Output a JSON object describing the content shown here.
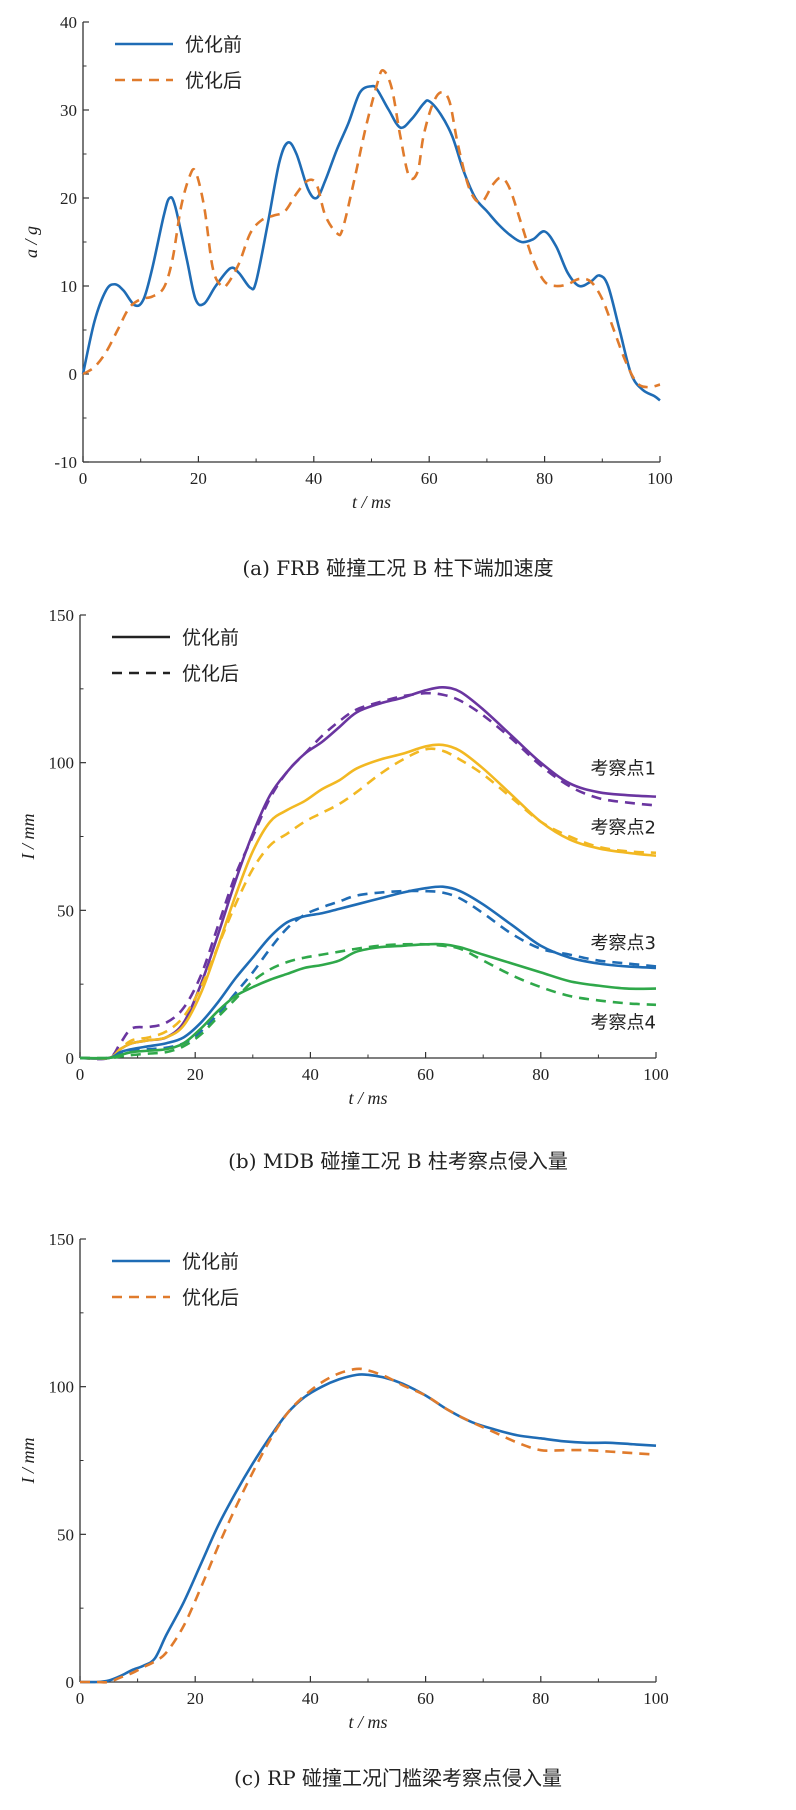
{
  "chart_data": [
    {
      "type": "line",
      "caption": "(a)  FRB 碰撞工况 B 柱下端加速度",
      "xlabel": "t / ms",
      "ylabel": "a / g",
      "xlim": [
        0,
        100
      ],
      "ylim": [
        -10,
        40
      ],
      "xticks": [
        0,
        20,
        40,
        60,
        80,
        100
      ],
      "yticks": [
        -10,
        0,
        10,
        20,
        30,
        40
      ],
      "legend": "top-left",
      "series": [
        {
          "name": "优化前",
          "color": "#1f6cb5",
          "dash": "solid",
          "x": [
            0,
            2,
            4,
            5.5,
            7,
            9,
            10.5,
            12,
            14,
            15,
            16,
            18,
            19.5,
            21,
            23,
            25.5,
            27,
            29,
            30,
            32,
            34,
            35.5,
            37,
            39,
            40.5,
            42,
            44,
            46,
            48,
            50,
            51,
            53,
            55,
            57,
            59,
            60,
            62,
            64,
            66,
            68,
            70,
            72,
            74,
            76,
            78,
            80,
            82,
            84,
            86,
            88,
            89.5,
            91,
            93,
            95,
            97,
            99,
            100
          ],
          "y": [
            0,
            6,
            9.5,
            10.2,
            9.5,
            7.8,
            8.5,
            12,
            18,
            20,
            19,
            13,
            8.5,
            8,
            10,
            12,
            11.5,
            9.8,
            10.5,
            17,
            24,
            26.3,
            25,
            21,
            20,
            22,
            25.5,
            28.5,
            32,
            32.7,
            32.3,
            30,
            28,
            29,
            30.7,
            31,
            29.5,
            27,
            23,
            20,
            18.5,
            17,
            15.8,
            15,
            15.3,
            16.2,
            14.5,
            11.5,
            10,
            10.5,
            11.2,
            10,
            5,
            0,
            -1.8,
            -2.5,
            -3
          ]
        },
        {
          "name": "优化后",
          "color": "#e07b2c",
          "dash": "10,7",
          "x": [
            0,
            2,
            4,
            6,
            8,
            10,
            12,
            14,
            15.5,
            17,
            18.5,
            19.5,
            21,
            22.5,
            24,
            25,
            27,
            29,
            31,
            33,
            35,
            37,
            39,
            40.5,
            42,
            44,
            45,
            47,
            49,
            51,
            52,
            53.5,
            55,
            56.5,
            58,
            59,
            60.5,
            62,
            63.5,
            65,
            67,
            69,
            71,
            72.5,
            74,
            76,
            78,
            80,
            82,
            84,
            86,
            88,
            90,
            92,
            94,
            96,
            98,
            100
          ],
          "y": [
            0,
            0.8,
            2.5,
            5,
            7.5,
            8.5,
            8.8,
            9.8,
            13,
            19,
            22.5,
            23,
            19,
            12,
            10,
            10.2,
            12.5,
            16,
            17.5,
            18,
            18.5,
            20.5,
            22,
            21.5,
            18,
            16,
            16.5,
            22,
            28,
            33,
            34.5,
            32.5,
            27,
            22.5,
            23,
            27,
            30.5,
            32,
            31,
            26,
            21,
            19.5,
            21.5,
            22.3,
            21,
            17,
            13,
            10.5,
            10,
            10.2,
            10.8,
            10.5,
            8.5,
            5,
            1.5,
            -1,
            -1.5,
            -1.2
          ]
        }
      ]
    },
    {
      "type": "line",
      "caption": "(b)  MDB 碰撞工况 B 柱考察点侵入量",
      "xlabel": "t / ms",
      "ylabel": "I / mm",
      "xlim": [
        0,
        100
      ],
      "ylim": [
        0,
        150
      ],
      "xticks": [
        0,
        20,
        40,
        60,
        80,
        100
      ],
      "yticks": [
        0,
        50,
        100,
        150
      ],
      "legend": "top-left",
      "legend_entries": [
        {
          "name": "优化前",
          "color": "#222222",
          "dash": "solid"
        },
        {
          "name": "优化后",
          "color": "#222222",
          "dash": "10,7"
        }
      ],
      "annotations": [
        {
          "text": "考察点1",
          "x": 88,
          "y": 98
        },
        {
          "text": "考察点2",
          "x": 88,
          "y": 78
        },
        {
          "text": "考察点3",
          "x": 88,
          "y": 39
        },
        {
          "text": "考察点4",
          "x": 88,
          "y": 12
        }
      ],
      "series": [
        {
          "name": "考察点1 优化前",
          "color": "#6a35a0",
          "dash": "solid",
          "x": [
            0,
            5,
            7,
            9,
            12,
            15,
            18,
            21,
            24,
            27,
            30,
            33,
            36,
            39,
            42,
            45,
            48,
            52,
            56,
            60,
            63,
            66,
            70,
            75,
            80,
            85,
            90,
            95,
            100
          ],
          "y": [
            0,
            0,
            3,
            5,
            6,
            7,
            12,
            25,
            42,
            60,
            76,
            89,
            97,
            103,
            107,
            112,
            117,
            120,
            122,
            124.5,
            125.5,
            124,
            118,
            109,
            100,
            93,
            90,
            89,
            88.5
          ]
        },
        {
          "name": "考察点1 优化后",
          "color": "#6a35a0",
          "dash": "10,7",
          "x": [
            0,
            5,
            7,
            9,
            12,
            15,
            18,
            21,
            24,
            27,
            30,
            33,
            36,
            39,
            42,
            45,
            48,
            52,
            56,
            60,
            63,
            66,
            70,
            75,
            80,
            85,
            90,
            95,
            100
          ],
          "y": [
            0,
            0,
            5,
            10,
            10.5,
            12,
            17,
            28,
            45,
            62,
            75,
            88,
            97,
            103,
            109,
            114,
            118,
            120.5,
            122.5,
            123.5,
            123,
            121,
            116,
            108,
            99,
            92,
            88,
            86.5,
            85.5
          ]
        },
        {
          "name": "考察点2 优化前",
          "color": "#f2b822",
          "dash": "solid",
          "x": [
            0,
            5,
            7,
            9,
            12,
            15,
            18,
            21,
            24,
            27,
            30,
            33,
            36,
            39,
            42,
            45,
            48,
            52,
            56,
            60,
            63,
            66,
            70,
            75,
            80,
            85,
            90,
            95,
            100
          ],
          "y": [
            0,
            0,
            3,
            5,
            6,
            7,
            11,
            22,
            38,
            55,
            70,
            80,
            84,
            87,
            91,
            94,
            98,
            101,
            103,
            105.5,
            106,
            104,
            98,
            89,
            80,
            74,
            71,
            69.5,
            68.5
          ]
        },
        {
          "name": "考察点2 优化后",
          "color": "#f2b822",
          "dash": "10,7",
          "x": [
            0,
            5,
            7,
            9,
            12,
            15,
            18,
            21,
            24,
            27,
            30,
            33,
            36,
            39,
            42,
            45,
            48,
            52,
            56,
            60,
            63,
            66,
            70,
            75,
            80,
            85,
            90,
            95,
            100
          ],
          "y": [
            0,
            0,
            3,
            6,
            7,
            9,
            14,
            24,
            38,
            52,
            64,
            72,
            76,
            80,
            83,
            86,
            90,
            96,
            101,
            104.5,
            104,
            101,
            96,
            88,
            80,
            75,
            71.5,
            70,
            69.5
          ]
        },
        {
          "name": "考察点3 优化前",
          "color": "#1f6cb5",
          "dash": "solid",
          "x": [
            0,
            5,
            7,
            9,
            12,
            15,
            18,
            21,
            24,
            27,
            30,
            33,
            36,
            39,
            42,
            45,
            48,
            52,
            56,
            60,
            63,
            66,
            70,
            75,
            80,
            85,
            90,
            95,
            100
          ],
          "y": [
            0,
            0,
            2,
            3,
            4,
            5,
            7,
            12,
            19,
            27,
            34,
            41,
            46,
            48,
            49,
            50.5,
            52,
            54,
            56,
            57.5,
            58,
            56.5,
            52,
            45,
            38,
            34,
            32,
            31,
            30.5
          ]
        },
        {
          "name": "考察点3 优化后",
          "color": "#1f6cb5",
          "dash": "10,7",
          "x": [
            0,
            5,
            7,
            9,
            12,
            15,
            18,
            21,
            24,
            27,
            30,
            33,
            36,
            39,
            42,
            45,
            48,
            52,
            56,
            60,
            63,
            66,
            70,
            75,
            80,
            85,
            90,
            95,
            100
          ],
          "y": [
            0,
            0,
            1.5,
            2.5,
            3,
            3.5,
            5,
            9,
            15,
            22,
            29,
            37,
            44,
            48.5,
            51,
            53,
            55,
            56,
            56.5,
            56.5,
            56,
            54,
            49,
            42,
            37,
            35,
            33,
            32,
            31
          ]
        },
        {
          "name": "考察点4 优化前",
          "color": "#2fa84a",
          "dash": "solid",
          "x": [
            0,
            5,
            7,
            9,
            12,
            15,
            18,
            21,
            24,
            27,
            30,
            33,
            36,
            39,
            42,
            45,
            48,
            52,
            56,
            60,
            63,
            66,
            70,
            75,
            80,
            85,
            90,
            95,
            100
          ],
          "y": [
            0,
            0,
            1,
            2,
            2.5,
            3,
            5,
            10,
            16,
            21,
            24,
            26.5,
            28.5,
            30.5,
            31.5,
            33,
            36,
            37.5,
            38,
            38.5,
            38.5,
            37.5,
            35,
            32,
            29,
            26,
            24.5,
            23.5,
            23.5
          ]
        },
        {
          "name": "考察点4 优化后",
          "color": "#2fa84a",
          "dash": "10,7",
          "x": [
            0,
            5,
            7,
            9,
            12,
            15,
            18,
            21,
            24,
            27,
            30,
            33,
            36,
            39,
            42,
            45,
            48,
            52,
            56,
            60,
            63,
            66,
            70,
            75,
            80,
            85,
            90,
            95,
            100
          ],
          "y": [
            0,
            0,
            0.5,
            1,
            1.5,
            2,
            4,
            8,
            14,
            20,
            26,
            30,
            32.5,
            34,
            35,
            36,
            37,
            38,
            38.5,
            38.5,
            38,
            37,
            33,
            28,
            24,
            21,
            19.5,
            18.5,
            18
          ]
        }
      ]
    },
    {
      "type": "line",
      "caption": "(c)  RP 碰撞工况门槛梁考察点侵入量",
      "xlabel": "t / ms",
      "ylabel": "I / mm",
      "xlim": [
        0,
        100
      ],
      "ylim": [
        0,
        150
      ],
      "xticks": [
        0,
        20,
        40,
        60,
        80,
        100
      ],
      "yticks": [
        0,
        50,
        100,
        150
      ],
      "legend": "top-left",
      "series": [
        {
          "name": "优化前",
          "color": "#1f6cb5",
          "dash": "solid",
          "x": [
            0,
            3,
            5,
            7,
            9,
            11,
            13,
            15,
            18,
            21,
            24,
            27,
            30,
            33,
            36,
            39,
            42,
            45,
            48,
            50,
            53,
            56,
            60,
            64,
            68,
            72,
            76,
            80,
            84,
            88,
            92,
            96,
            100
          ],
          "y": [
            0,
            0,
            0.5,
            2,
            4,
            5.5,
            8,
            16,
            27,
            40,
            53,
            64,
            74,
            83,
            91,
            96.5,
            100,
            102.5,
            104,
            104,
            103,
            101,
            97,
            92,
            88,
            85.5,
            83.5,
            82.5,
            81.5,
            81,
            81,
            80.5,
            80
          ]
        },
        {
          "name": "优化后",
          "color": "#e07b2c",
          "dash": "10,7",
          "x": [
            0,
            3,
            5,
            7,
            9,
            11,
            13,
            15,
            18,
            21,
            24,
            27,
            30,
            33,
            36,
            39,
            42,
            45,
            48,
            50,
            53,
            56,
            60,
            64,
            68,
            72,
            76,
            80,
            84,
            88,
            92,
            96,
            100
          ],
          "y": [
            0,
            0,
            0,
            1.5,
            3,
            5,
            7,
            10,
            19,
            32,
            46,
            59,
            71,
            82,
            91,
            97,
            101.5,
            104.5,
            106,
            105.5,
            103.5,
            100.5,
            97,
            92,
            88,
            84.5,
            81,
            78.5,
            78.5,
            78.5,
            78,
            77.5,
            77
          ]
        }
      ]
    }
  ]
}
